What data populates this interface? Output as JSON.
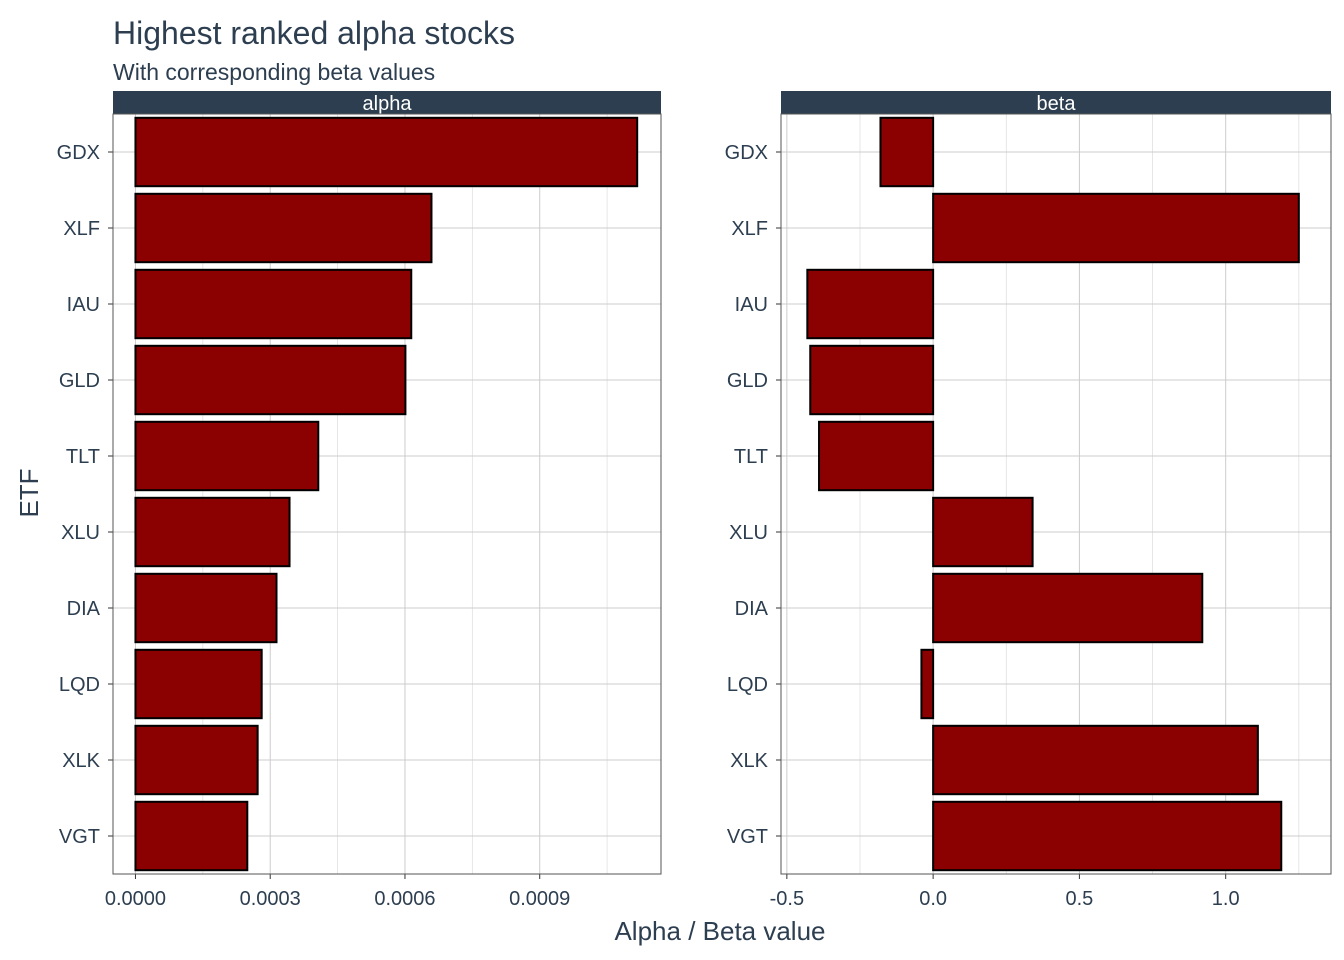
{
  "chart_data": {
    "type": "bar",
    "orientation": "horizontal",
    "title": "Highest ranked  alpha stocks",
    "subtitle": "With corresponding beta values",
    "xlabel": "Alpha / Beta value",
    "ylabel": "ETF",
    "grid": true,
    "bar_color": "#8b0000",
    "bar_outline": "#000000",
    "strip_color": "#2c3e50",
    "text_color": "#2c3e50",
    "categories": [
      "GDX",
      "XLF",
      "IAU",
      "GLD",
      "TLT",
      "XLU",
      "DIA",
      "LQD",
      "XLK",
      "VGT"
    ],
    "panels": [
      {
        "name": "alpha",
        "values": [
          0.001117,
          0.000659,
          0.000614,
          0.000601,
          0.000407,
          0.000343,
          0.000314,
          0.000281,
          0.000272,
          0.000249
        ],
        "xlim": [
          -5e-05,
          0.00117
        ],
        "xticks": [
          0,
          0.0003,
          0.0006,
          0.0009
        ],
        "xtick_labels": [
          "0.0000",
          "0.0003",
          "0.0006",
          "0.0009"
        ]
      },
      {
        "name": "beta",
        "values": [
          -0.18,
          1.25,
          -0.43,
          -0.42,
          -0.39,
          0.34,
          0.92,
          -0.04,
          1.11,
          1.19
        ],
        "xlim": [
          -0.52,
          1.36
        ],
        "xticks": [
          -0.5,
          0,
          0.5,
          1.0
        ],
        "xtick_labels": [
          "-0.5",
          "0.0",
          "0.5",
          "1.0"
        ]
      }
    ]
  }
}
